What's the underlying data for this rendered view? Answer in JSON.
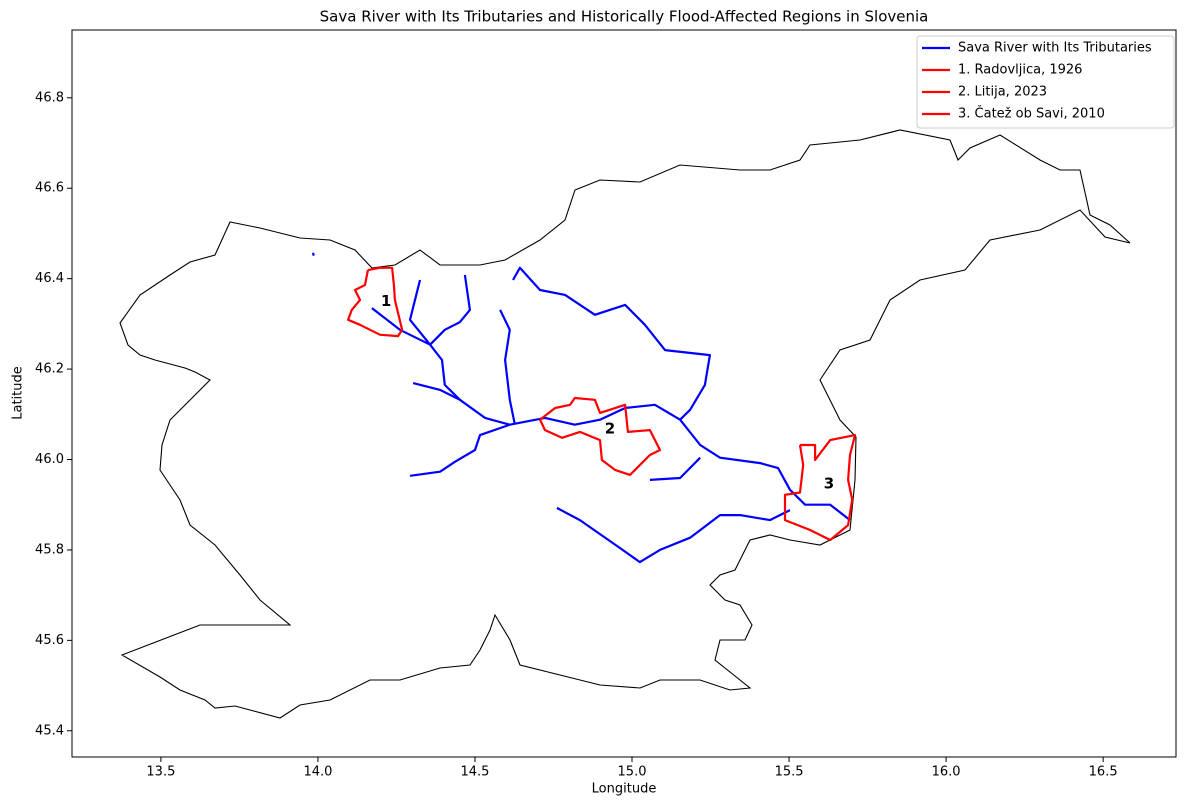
{
  "chart_data": {
    "type": "line",
    "title": "Sava River with Its Tributaries and Historically Flood-Affected Regions in Slovenia",
    "x_label": "Longitude",
    "y_label": "Latitude",
    "xlim": [
      13.217,
      16.732
    ],
    "ylim": [
      45.342,
      46.95
    ],
    "xticks": [
      13.5,
      {
        "value": 14,
        "label": "14.0"
      },
      14.5,
      {
        "value": 15,
        "label": "15.0"
      },
      15.5,
      {
        "value": 16,
        "label": "16.0"
      },
      16.5
    ],
    "yticks": [
      45.4,
      45.6,
      45.8,
      {
        "value": 46,
        "label": "46.0"
      },
      46.2,
      46.4,
      46.6,
      46.8
    ],
    "grid": false,
    "legend": "upper right",
    "series": [
      {
        "name": "Sava River with Its Tributaries",
        "color": "#0000ff",
        "x": [
          14.172,
          14.261,
          14.357,
          14.395,
          14.404,
          14.452,
          14.532,
          14.611,
          14.723,
          14.818,
          14.898,
          14.978,
          15.073,
          15.153,
          15.217,
          15.28,
          15.408,
          15.465,
          15.503,
          15.551,
          15.631,
          15.694,
          null,
          14.621,
          14.643,
          14.707,
          14.787,
          14.882,
          14.978,
          15.041,
          15.105,
          15.248,
          15.232,
          15.185,
          15.153,
          null,
          14.761,
          14.834,
          14.962,
          15.025,
          15.089,
          15.185,
          15.28,
          15.344,
          15.439,
          15.503,
          null,
          14.293,
          14.389,
          14.436,
          14.5,
          14.516,
          14.611,
          null,
          14.303,
          14.389,
          14.452,
          null,
          14.58,
          14.611,
          14.596,
          14.611,
          14.627,
          null,
          14.468,
          14.484,
          14.452,
          14.404,
          14.357,
          null,
          14.325,
          14.293,
          14.357,
          null,
          15.057,
          15.153,
          15.217,
          null,
          13.984,
          13.987
        ],
        "y": [
          46.335,
          46.287,
          46.254,
          46.22,
          46.165,
          46.132,
          46.092,
          46.077,
          46.092,
          46.077,
          46.088,
          46.114,
          46.121,
          46.088,
          46.032,
          46.004,
          45.992,
          45.981,
          45.933,
          45.9,
          45.9,
          45.866,
          null,
          46.397,
          46.424,
          46.375,
          46.364,
          46.32,
          46.342,
          46.298,
          46.242,
          46.231,
          46.165,
          46.11,
          46.088,
          null,
          45.893,
          45.866,
          45.804,
          45.773,
          45.8,
          45.827,
          45.877,
          45.877,
          45.866,
          45.888,
          null,
          45.964,
          45.973,
          45.995,
          46.021,
          46.054,
          46.077,
          null,
          46.169,
          46.154,
          46.132,
          null,
          46.331,
          46.287,
          46.22,
          46.132,
          46.077,
          null,
          46.408,
          46.331,
          46.304,
          46.287,
          46.254,
          null,
          46.397,
          46.309,
          46.254,
          null,
          45.955,
          45.959,
          46.004,
          null,
          46.457,
          46.451
        ]
      },
      {
        "name": "1. Radovljica, 1926",
        "color": "#ff0000",
        "x": [
          14.159,
          14.197,
          14.236,
          14.242,
          14.245,
          14.268,
          14.255,
          14.197,
          14.134,
          14.096,
          14.108,
          14.134,
          14.118,
          14.15,
          14.159
        ],
        "y": [
          46.419,
          46.424,
          46.424,
          46.386,
          46.353,
          46.287,
          46.273,
          46.276,
          46.298,
          46.309,
          46.331,
          46.353,
          46.375,
          46.386,
          46.419
        ]
      },
      {
        "name": "2. Litija, 2023",
        "color": "#ff0000",
        "x": [
          14.707,
          14.755,
          14.803,
          14.818,
          14.882,
          14.898,
          14.978,
          14.987,
          15.057,
          15.089,
          15.057,
          14.994,
          14.946,
          14.904,
          14.898,
          14.834,
          14.777,
          14.723,
          14.707
        ],
        "y": [
          46.088,
          46.114,
          46.121,
          46.136,
          46.132,
          46.103,
          46.121,
          46.061,
          46.065,
          46.021,
          46.01,
          45.966,
          45.977,
          45.999,
          46.043,
          46.061,
          46.048,
          46.065,
          46.088
        ]
      },
      {
        "name": "3. Čatež ob Savi, 2010",
        "color": "#ff0000",
        "x": [
          15.535,
          15.583,
          15.583,
          15.631,
          15.71,
          15.694,
          15.688,
          15.701,
          15.688,
          15.631,
          15.567,
          15.487,
          15.487,
          15.535,
          15.545,
          15.535
        ],
        "y": [
          46.032,
          46.032,
          45.999,
          46.043,
          46.054,
          46.01,
          45.955,
          45.911,
          45.855,
          45.822,
          45.844,
          45.866,
          45.922,
          45.927,
          45.988,
          46.032
        ]
      }
    ],
    "annotations": [
      {
        "text": "1",
        "x": 14.217,
        "y": 46.349
      },
      {
        "text": "2",
        "x": 14.93,
        "y": 46.068
      },
      {
        "text": "3",
        "x": 15.627,
        "y": 45.946
      }
    ]
  }
}
